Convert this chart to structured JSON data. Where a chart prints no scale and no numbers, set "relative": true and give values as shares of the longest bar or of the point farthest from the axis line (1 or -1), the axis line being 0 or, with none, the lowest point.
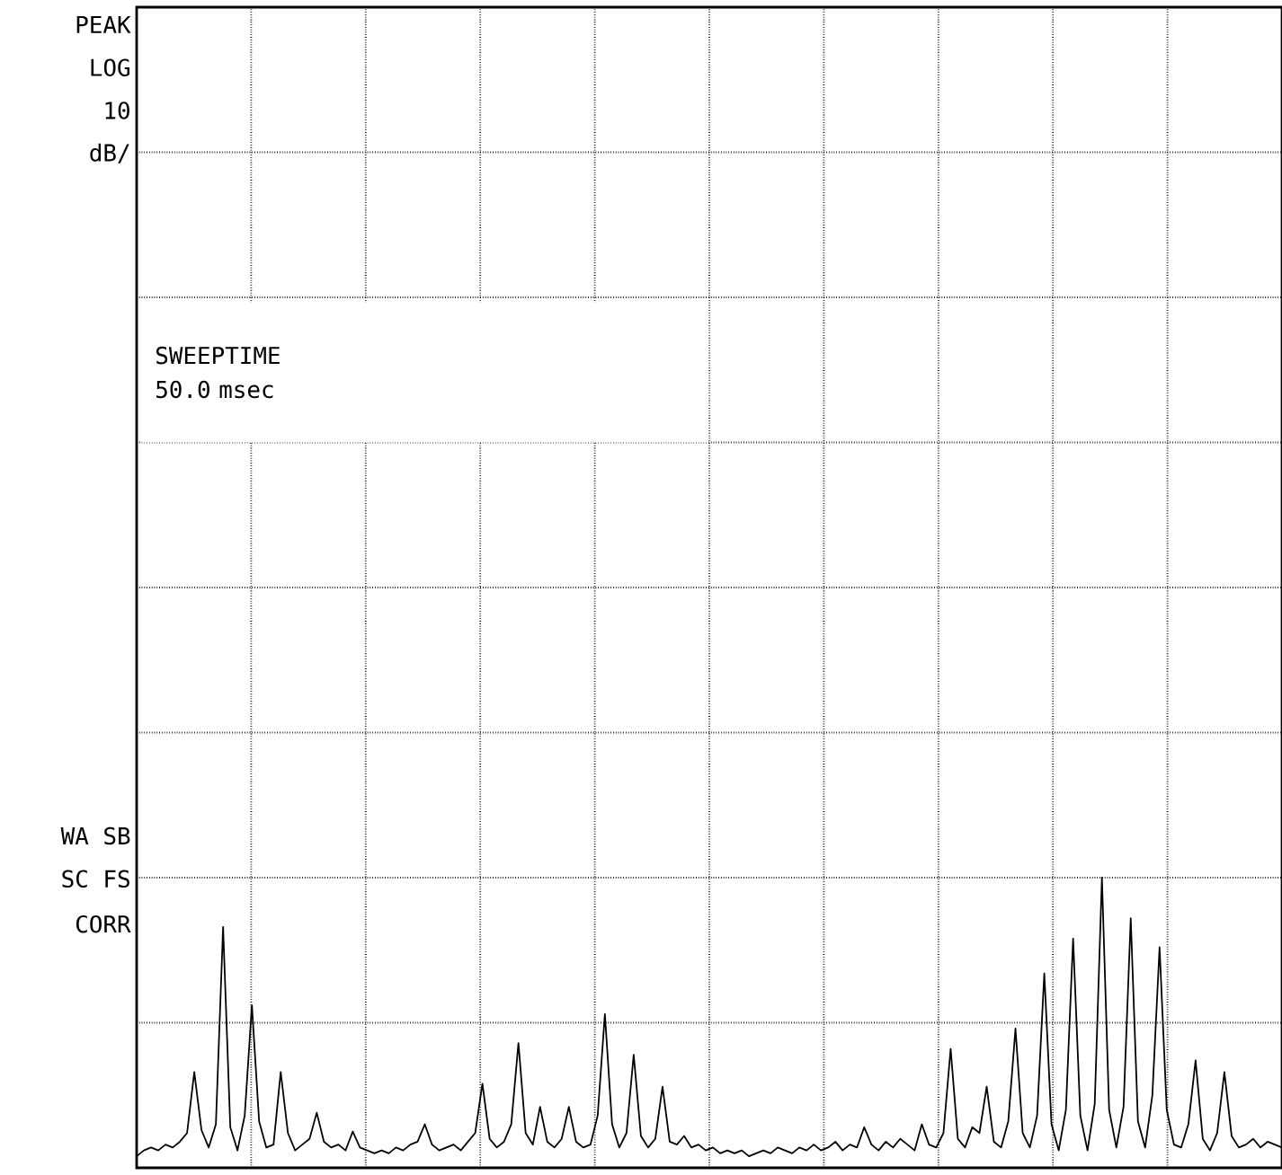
{
  "chart_data": {
    "type": "line",
    "relative": true,
    "grid": true,
    "marker": "none",
    "line_style": "solid",
    "annotations": [
      "PEAK",
      "LOG",
      "10",
      "dB/",
      "SWEEPTIME",
      "50.0 msec",
      "WA SB",
      "SC FS",
      "CORR"
    ],
    "categories": [
      null,
      null,
      null,
      null,
      null,
      null,
      null,
      null,
      null,
      null,
      null,
      null,
      null,
      null,
      null,
      null,
      null,
      null,
      null,
      null,
      null,
      null,
      null,
      null,
      null,
      null,
      null,
      null,
      null,
      null,
      null,
      null,
      null,
      null,
      null,
      null,
      null,
      null,
      null,
      null,
      null,
      null,
      null,
      null,
      null,
      null,
      null,
      null,
      null,
      null,
      null,
      null,
      null,
      null,
      null,
      null,
      null,
      null,
      null,
      null,
      null,
      null,
      null,
      null,
      null,
      null,
      null,
      null,
      null,
      null,
      null,
      null,
      null,
      null,
      null,
      null,
      null,
      null,
      null,
      null,
      null,
      null,
      null,
      null,
      null,
      null,
      null,
      null,
      null,
      null,
      null,
      null,
      null,
      null,
      null,
      null,
      null,
      null,
      null,
      null,
      null,
      null,
      null,
      null,
      null,
      null,
      null,
      null,
      null,
      null,
      null,
      null,
      null,
      null,
      null,
      null,
      null,
      null,
      null,
      null,
      null,
      null,
      null,
      null,
      null,
      null,
      null,
      null,
      null,
      null,
      null,
      null,
      null,
      null,
      null,
      null,
      null,
      null,
      null,
      null,
      null,
      null,
      null,
      null,
      null,
      null,
      null,
      null,
      null,
      null,
      null,
      null,
      null,
      null,
      null,
      null,
      null,
      null,
      null,
      null
    ],
    "series": [
      {
        "color": "#000000",
        "values": [
          0.04,
          0.06,
          0.07,
          0.06,
          0.08,
          0.07,
          0.09,
          0.12,
          0.33,
          0.13,
          0.07,
          0.15,
          0.83,
          0.14,
          0.06,
          0.18,
          0.56,
          0.16,
          0.07,
          0.08,
          0.33,
          0.12,
          0.06,
          0.08,
          0.1,
          0.19,
          0.09,
          0.07,
          0.08,
          0.06,
          0.125,
          0.07,
          0.06,
          0.05,
          0.06,
          0.05,
          0.07,
          0.06,
          0.08,
          0.09,
          0.15,
          0.08,
          0.06,
          0.07,
          0.08,
          0.06,
          0.09,
          0.12,
          0.29,
          0.1,
          0.07,
          0.09,
          0.15,
          0.43,
          0.12,
          0.08,
          0.21,
          0.09,
          0.07,
          0.1,
          0.21,
          0.09,
          0.07,
          0.08,
          0.18,
          0.53,
          0.15,
          0.07,
          0.12,
          0.39,
          0.11,
          0.07,
          0.1,
          0.28,
          0.09,
          0.08,
          0.11,
          0.07,
          0.08,
          0.06,
          0.07,
          0.05,
          0.06,
          0.05,
          0.06,
          0.04,
          0.05,
          0.06,
          0.05,
          0.07,
          0.06,
          0.05,
          0.07,
          0.06,
          0.08,
          0.06,
          0.07,
          0.09,
          0.06,
          0.08,
          0.07,
          0.14,
          0.08,
          0.06,
          0.09,
          0.07,
          0.1,
          0.08,
          0.06,
          0.15,
          0.08,
          0.07,
          0.12,
          0.41,
          0.1,
          0.07,
          0.14,
          0.12,
          0.28,
          0.09,
          0.07,
          0.16,
          0.48,
          0.12,
          0.07,
          0.18,
          0.67,
          0.15,
          0.06,
          0.2,
          0.79,
          0.18,
          0.06,
          0.22,
          1,
          0.2,
          0.07,
          0.21,
          0.86,
          0.16,
          0.07,
          0.25,
          0.76,
          0.2,
          0.08,
          0.07,
          0.15,
          0.37,
          0.1,
          0.06,
          0.12,
          0.33,
          0.11,
          0.07,
          0.08,
          0.1,
          0.07,
          0.09,
          0.08,
          0.07
        ]
      }
    ]
  }
}
